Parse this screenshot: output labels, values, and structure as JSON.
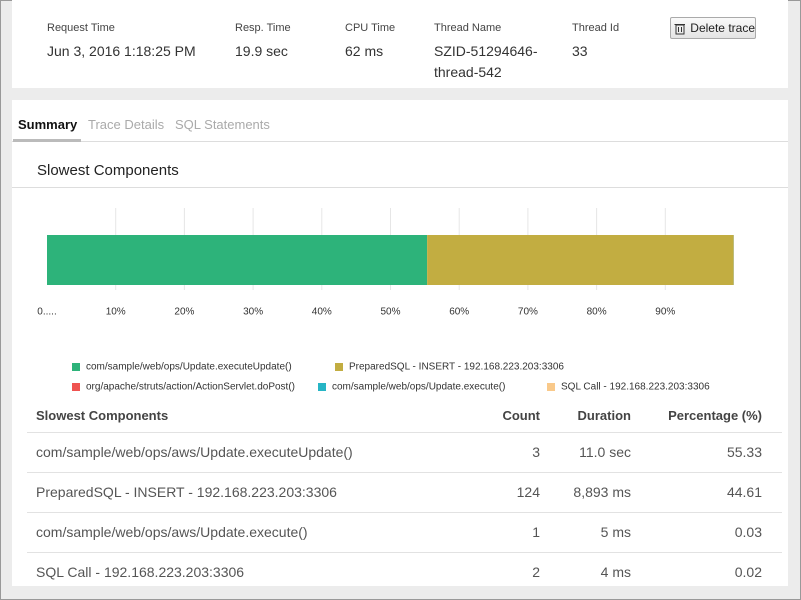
{
  "header": {
    "fields": [
      {
        "label": "Request Time",
        "value": "Jun 3, 2016 1:18:25 PM"
      },
      {
        "label": "Resp. Time",
        "value": "19.9 sec"
      },
      {
        "label": "CPU Time",
        "value": "62 ms"
      },
      {
        "label": "Thread Name",
        "value": "SZID-51294646-thread-542"
      },
      {
        "label": "Thread Id",
        "value": "33"
      }
    ],
    "button": "Delete trace"
  },
  "tabs": [
    "Summary",
    "Trace Details",
    "SQL Statements"
  ],
  "chart_data": {
    "type": "stacked-bar",
    "orientation": "horizontal",
    "title": "Slowest Components",
    "categories": [
      null
    ],
    "series": [
      {
        "name": "com/sample/web/ops/Update.executeUpdate()",
        "color": "#2db37a",
        "values": [
          55.33
        ]
      },
      {
        "name": "PreparedSQL - INSERT - 192.168.223.203:3306",
        "color": "#c2ad41",
        "values": [
          44.61
        ]
      },
      {
        "name": "org/apache/struts/action/ActionServlet.doPost()",
        "color": "#ef5350",
        "values": [
          0.01
        ]
      },
      {
        "name": "com/sample/web/ops/Update.execute()",
        "color": "#26b5c5",
        "values": [
          0.03
        ]
      },
      {
        "name": "SQL Call - 192.168.223.203:3306",
        "color": "#f9c98a",
        "values": [
          0.02
        ]
      }
    ],
    "xlim": [
      0,
      100
    ],
    "xticks": [
      {
        "value": 0,
        "label": "0....."
      },
      {
        "value": 10,
        "label": "10%"
      },
      {
        "value": 20,
        "label": "20%"
      },
      {
        "value": 30,
        "label": "30%"
      },
      {
        "value": 40,
        "label": "40%"
      },
      {
        "value": 50,
        "label": "50%"
      },
      {
        "value": 60,
        "label": "60%"
      },
      {
        "value": 70,
        "label": "70%"
      },
      {
        "value": 80,
        "label": "80%"
      },
      {
        "value": 90,
        "label": "90%"
      }
    ],
    "grid": true,
    "legend": "bottom"
  },
  "table": {
    "header": [
      "Slowest Components",
      "Count",
      "Duration",
      "Percentage (%)"
    ],
    "rows": [
      [
        "com/sample/web/ops/aws/Update.executeUpdate()",
        "3",
        "11.0 sec",
        "55.33"
      ],
      [
        "PreparedSQL - INSERT - 192.168.223.203:3306",
        "124",
        "8,893 ms",
        "44.61"
      ],
      [
        "com/sample/web/ops/aws/Update.execute()",
        "1",
        "5 ms",
        "0.03"
      ],
      [
        "SQL Call - 192.168.223.203:3306",
        "2",
        "4 ms",
        "0.02"
      ]
    ]
  }
}
